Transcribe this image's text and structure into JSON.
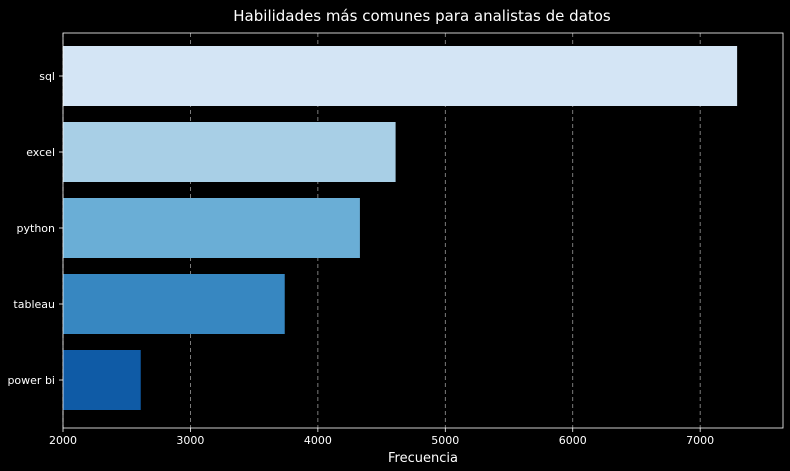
{
  "chart_data": {
    "type": "bar",
    "orientation": "horizontal",
    "title": "Habilidades más comunes para analistas de datos",
    "xlabel": "Frecuencia",
    "ylabel": "",
    "categories": [
      "sql",
      "excel",
      "python",
      "tableau",
      "power bi"
    ],
    "values": [
      7290,
      4610,
      4330,
      3740,
      2610
    ],
    "xlim": [
      2000,
      7650
    ],
    "xticks": [
      2000,
      3000,
      4000,
      5000,
      6000,
      7000
    ],
    "grid": {
      "x": true,
      "y": false,
      "style": "dashed"
    },
    "colors": [
      "#d4e5f5",
      "#a8cfe6",
      "#6aaed6",
      "#3787c1",
      "#0f5ba6"
    ],
    "background": "#000000",
    "foreground": "#ffffff"
  }
}
